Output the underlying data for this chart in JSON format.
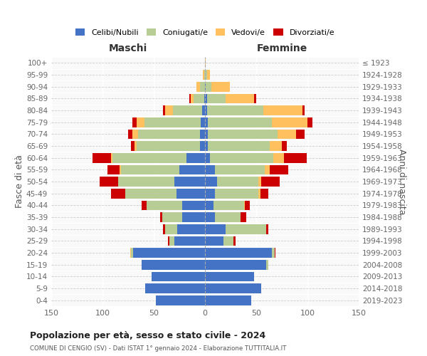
{
  "age_groups": [
    "0-4",
    "5-9",
    "10-14",
    "15-19",
    "20-24",
    "25-29",
    "30-34",
    "35-39",
    "40-44",
    "45-49",
    "50-54",
    "55-59",
    "60-64",
    "65-69",
    "70-74",
    "75-79",
    "80-84",
    "85-89",
    "90-94",
    "95-99",
    "100+"
  ],
  "birth_years": [
    "2019-2023",
    "2014-2018",
    "2009-2013",
    "2004-2008",
    "1999-2003",
    "1994-1998",
    "1989-1993",
    "1984-1988",
    "1979-1983",
    "1974-1978",
    "1969-1973",
    "1964-1968",
    "1959-1963",
    "1954-1958",
    "1949-1953",
    "1944-1948",
    "1939-1943",
    "1934-1938",
    "1929-1933",
    "1924-1928",
    "≤ 1923"
  ],
  "colors": {
    "celibe": "#4472c4",
    "coniugato": "#b8cc96",
    "vedovo": "#ffc060",
    "divorziato": "#cc0000"
  },
  "maschi": {
    "celibe": [
      48,
      58,
      52,
      62,
      70,
      30,
      27,
      22,
      22,
      28,
      30,
      25,
      18,
      5,
      5,
      4,
      3,
      1,
      0,
      0,
      0
    ],
    "coniugato": [
      0,
      0,
      0,
      0,
      2,
      5,
      12,
      20,
      35,
      50,
      55,
      57,
      72,
      62,
      60,
      55,
      28,
      10,
      5,
      1,
      0
    ],
    "vedovo": [
      0,
      0,
      0,
      0,
      1,
      0,
      0,
      0,
      0,
      0,
      0,
      1,
      2,
      2,
      6,
      8,
      8,
      3,
      3,
      1,
      0
    ],
    "divorziato": [
      0,
      0,
      0,
      0,
      0,
      1,
      2,
      2,
      5,
      14,
      18,
      12,
      18,
      3,
      4,
      4,
      2,
      1,
      0,
      0,
      0
    ]
  },
  "femmine": {
    "nubile": [
      45,
      55,
      48,
      60,
      65,
      18,
      20,
      10,
      8,
      10,
      12,
      10,
      5,
      3,
      3,
      3,
      2,
      2,
      1,
      0,
      0
    ],
    "coniugata": [
      0,
      0,
      0,
      2,
      3,
      10,
      40,
      25,
      30,
      42,
      40,
      48,
      62,
      60,
      68,
      62,
      55,
      18,
      5,
      2,
      0
    ],
    "vedova": [
      0,
      0,
      0,
      0,
      0,
      0,
      0,
      0,
      1,
      2,
      3,
      5,
      10,
      12,
      18,
      35,
      38,
      28,
      18,
      3,
      1
    ],
    "divorziata": [
      0,
      0,
      0,
      0,
      1,
      2,
      2,
      5,
      5,
      8,
      18,
      18,
      22,
      5,
      8,
      5,
      2,
      2,
      0,
      0,
      0
    ]
  },
  "title": "Popolazione per età, sesso e stato civile - 2024",
  "subtitle": "COMUNE DI CENGIO (SV) - Dati ISTAT 1° gennaio 2024 - Elaborazione TUTTITALIA.IT",
  "xlabel_left": "Maschi",
  "xlabel_right": "Femmine",
  "ylabel_left": "Fasce di età",
  "ylabel_right": "Anni di nascita",
  "xlim": 150,
  "legend_labels": [
    "Celibi/Nubili",
    "Coniugati/e",
    "Vedovi/e",
    "Divorziati/e"
  ],
  "bg_color": "#f9f9f9",
  "fig_bg": "#ffffff"
}
